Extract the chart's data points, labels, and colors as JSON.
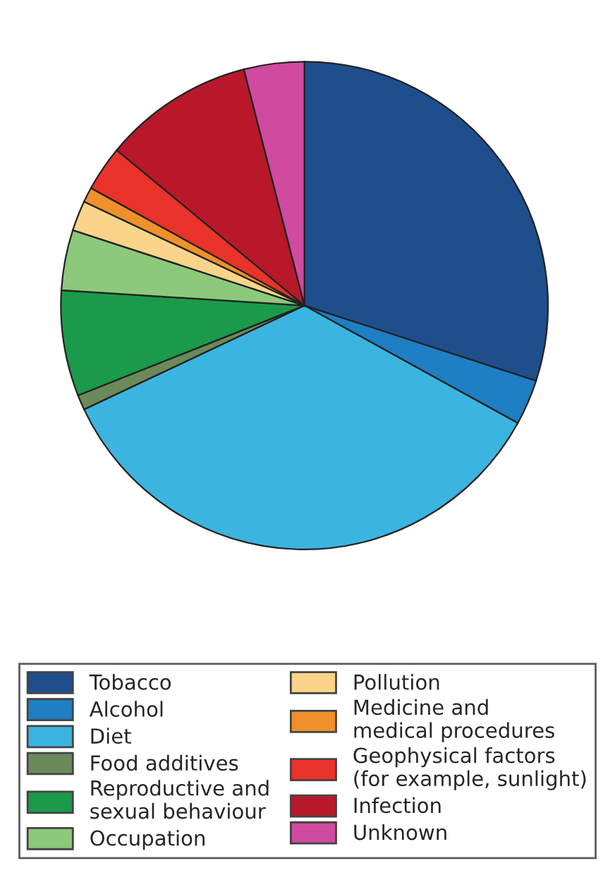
{
  "chart_data": {
    "type": "pie",
    "categories": [
      "Tobacco",
      "Alcohol",
      "Diet",
      "Food additives",
      "Reproductive and\nsexual behaviour",
      "Occupation",
      "Pollution",
      "Medicine and\nmedical procedures",
      "Geophysical factors\n(for example, sunlight)",
      "Infection",
      "Unknown"
    ],
    "values": [
      30,
      3,
      35,
      1,
      7,
      4,
      2,
      1,
      3,
      10,
      4
    ],
    "colors": [
      "#1f4e8c",
      "#1e7fc4",
      "#3bb4e0",
      "#6b8a5a",
      "#1a9a4a",
      "#8cc97a",
      "#f9d48a",
      "#f0902a",
      "#e8322a",
      "#b8182a",
      "#d04aa0"
    ],
    "legend": "bottom"
  }
}
